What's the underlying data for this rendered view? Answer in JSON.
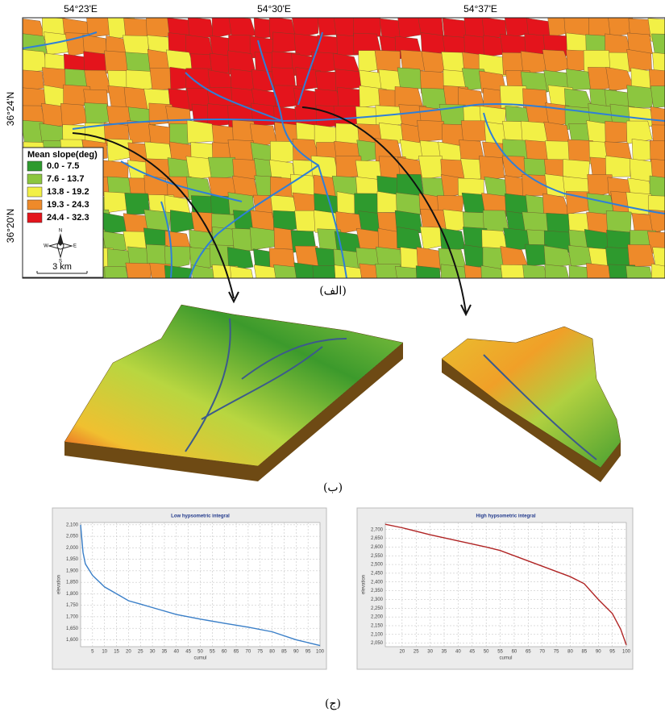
{
  "map": {
    "lon_labels": [
      "54°23'E",
      "54°30'E",
      "54°37'E"
    ],
    "lat_labels": [
      "36°24'N",
      "36°20'N"
    ],
    "legend": {
      "title": "Mean slope(deg)",
      "classes": [
        {
          "label": "0.0 - 7.5",
          "color": "#2e9a2e"
        },
        {
          "label": "7.6 - 13.7",
          "color": "#8cc63f"
        },
        {
          "label": "13.8 - 19.2",
          "color": "#f2f046"
        },
        {
          "label": "19.3 - 24.3",
          "color": "#ee8a2a"
        },
        {
          "label": "24.4 - 32.3",
          "color": "#e4141c"
        }
      ]
    },
    "compass": [
      "N",
      "E",
      "S",
      "W"
    ],
    "scale": "3 km"
  },
  "captions": [
    "(الف)",
    "(ب)",
    "(ج)"
  ],
  "chart_data": [
    {
      "type": "line",
      "title": "Low hypsometric integral",
      "x_label": "cumul",
      "y_label": "elevation",
      "x": [
        0,
        1,
        2,
        5,
        10,
        15,
        20,
        25,
        30,
        40,
        45,
        50,
        60,
        70,
        80,
        90,
        100
      ],
      "values": [
        2100,
        1980,
        1930,
        1880,
        1830,
        1800,
        1770,
        1755,
        1740,
        1710,
        1700,
        1690,
        1672,
        1655,
        1635,
        1600,
        1575
      ],
      "color": "#3a7fc8",
      "grid": true,
      "xlim": [
        0,
        100
      ],
      "xticks": [
        5,
        10,
        15,
        20,
        25,
        30,
        35,
        40,
        45,
        50,
        55,
        60,
        65,
        70,
        75,
        80,
        85,
        90,
        95,
        100
      ],
      "ylim": [
        1570,
        2110
      ],
      "yticks": [
        {
          "value": 1600,
          "label": "1,600"
        },
        {
          "value": 1650,
          "label": "1,650"
        },
        {
          "value": 1700,
          "label": "1,700"
        },
        {
          "value": 1750,
          "label": "1,750"
        },
        {
          "value": 1800,
          "label": "1,800"
        },
        {
          "value": 1850,
          "label": "1,850"
        },
        {
          "value": 1900,
          "label": "1,900"
        },
        {
          "value": 1950,
          "label": "1,950"
        },
        {
          "value": 2000,
          "label": "2,000"
        },
        {
          "value": 2050,
          "label": "2,050"
        },
        {
          "value": 2100,
          "label": "2,100"
        }
      ]
    },
    {
      "type": "line",
      "title": "High hypsometric integral",
      "x_label": "cumul",
      "y_label": "elevation",
      "x": [
        14,
        20,
        30,
        40,
        50,
        55,
        60,
        70,
        80,
        85,
        90,
        95,
        98,
        100
      ],
      "values": [
        2730,
        2710,
        2670,
        2635,
        2600,
        2580,
        2550,
        2490,
        2430,
        2390,
        2300,
        2220,
        2130,
        2040
      ],
      "color": "#b02424",
      "grid": true,
      "xlim": [
        14,
        100
      ],
      "xticks": [
        20,
        25,
        30,
        35,
        40,
        45,
        50,
        55,
        60,
        65,
        70,
        75,
        80,
        85,
        90,
        95,
        100
      ],
      "ylim": [
        2030,
        2740
      ],
      "yticks": [
        {
          "value": 2050,
          "label": "2,050"
        },
        {
          "value": 2100,
          "label": "2,100"
        },
        {
          "value": 2150,
          "label": "2,150"
        },
        {
          "value": 2200,
          "label": "2,200"
        },
        {
          "value": 2250,
          "label": "2,250"
        },
        {
          "value": 2300,
          "label": "2,300"
        },
        {
          "value": 2350,
          "label": "2,350"
        },
        {
          "value": 2400,
          "label": "2,400"
        },
        {
          "value": 2450,
          "label": "2,450"
        },
        {
          "value": 2500,
          "label": "2,500"
        },
        {
          "value": 2550,
          "label": "2,550"
        },
        {
          "value": 2600,
          "label": "2,600"
        },
        {
          "value": 2650,
          "label": "2,650"
        },
        {
          "value": 2700,
          "label": "2,700"
        }
      ]
    }
  ]
}
